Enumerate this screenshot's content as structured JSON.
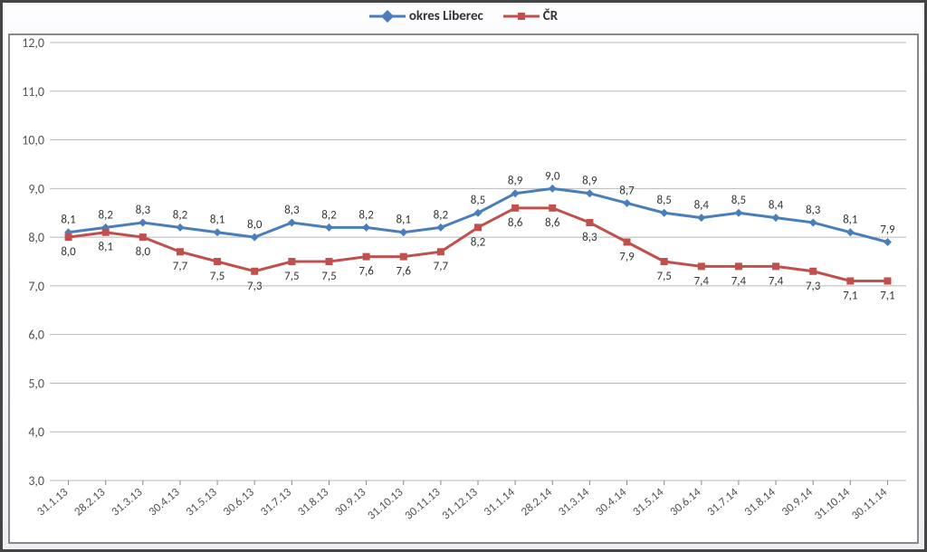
{
  "chart": {
    "type": "line",
    "background_color": "#ffffff",
    "frame_bg_gradient": [
      "#fdfdfe",
      "#eef0f4"
    ],
    "grid_color": "#b8b8b8",
    "axis_color": "#888888",
    "legend": {
      "items": [
        {
          "label": "okres Liberec",
          "color": "#4a7ebb",
          "marker": "diamond"
        },
        {
          "label": "ČR",
          "color": "#c0504d",
          "marker": "square"
        }
      ],
      "fontsize": 15
    },
    "categories": [
      "31.1.13",
      "28.2.13",
      "31.3.13",
      "30.4.13",
      "31.5.13",
      "30.6.13",
      "31.7.13",
      "31.8.13",
      "30.9.13",
      "31.10.13",
      "30.11.13",
      "31.12.13",
      "31.1.14",
      "28.2.14",
      "31.3.14",
      "30.4.14",
      "31.5.14",
      "30.6.14",
      "31.7.14",
      "31.8.14",
      "30.9.14",
      "31.10.14",
      "30.11.14"
    ],
    "series": [
      {
        "name": "okres Liberec",
        "color": "#4a7ebb",
        "marker": "diamond",
        "line_width": 3,
        "marker_size": 9,
        "values": [
          8.1,
          8.2,
          8.3,
          8.2,
          8.1,
          8.0,
          8.3,
          8.2,
          8.2,
          8.1,
          8.2,
          8.5,
          8.9,
          9.0,
          8.9,
          8.7,
          8.5,
          8.4,
          8.5,
          8.4,
          8.3,
          8.1,
          7.9
        ],
        "label_pos": "above"
      },
      {
        "name": "ČR",
        "color": "#c0504d",
        "marker": "square",
        "line_width": 3,
        "marker_size": 8,
        "values": [
          8.0,
          8.1,
          8.0,
          7.7,
          7.5,
          7.3,
          7.5,
          7.5,
          7.6,
          7.6,
          7.7,
          8.2,
          8.6,
          8.6,
          8.3,
          7.9,
          7.5,
          7.4,
          7.4,
          7.4,
          7.3,
          7.1,
          7.1
        ],
        "label_pos": "below"
      }
    ],
    "y": {
      "min": 3.0,
      "max": 12.0,
      "step": 1.0,
      "format": "comma1",
      "fontsize": 14,
      "color": "#535353"
    },
    "x": {
      "fontsize": 13,
      "color": "#535353",
      "angle": -40
    }
  }
}
